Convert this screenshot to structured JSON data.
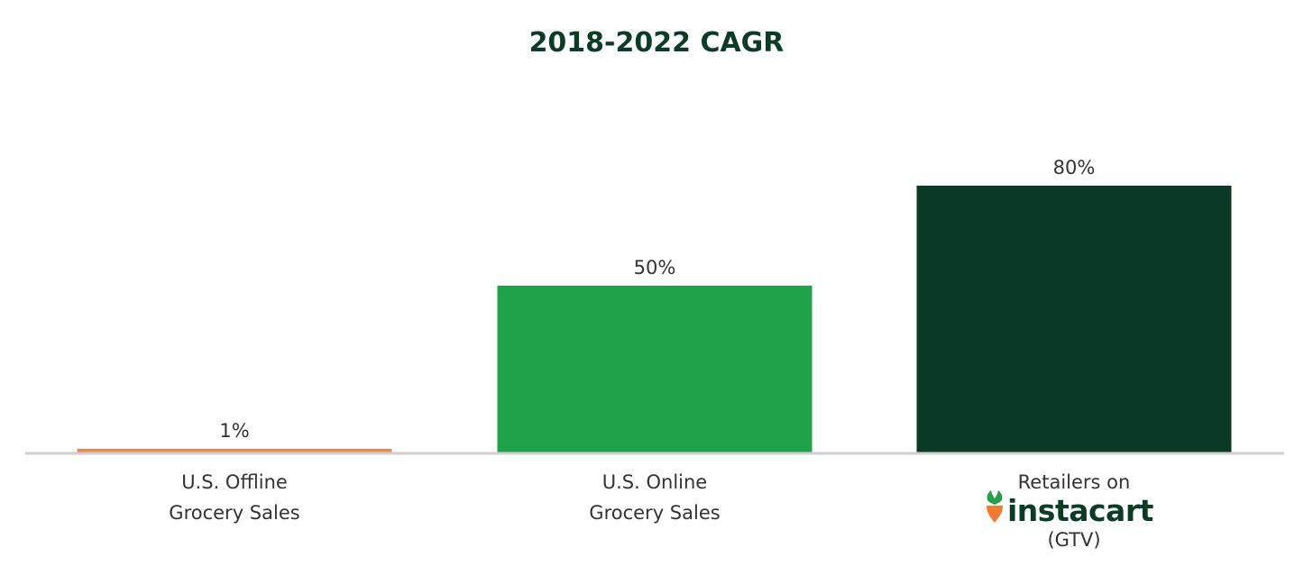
{
  "chart_data": {
    "type": "bar",
    "title": "2018-2022 CAGR",
    "categories": [
      {
        "lines": [
          "U.S. Offline",
          "Grocery Sales"
        ],
        "brand": "",
        "suffix": ""
      },
      {
        "lines": [
          "U.S. Online",
          "Grocery Sales"
        ],
        "brand": "",
        "suffix": ""
      },
      {
        "lines": [
          "Retailers on"
        ],
        "brand": "instacart",
        "suffix": "(GTV)"
      }
    ],
    "values": [
      1,
      50,
      80
    ],
    "value_labels": [
      "1%",
      "50%",
      "80%"
    ],
    "colors": [
      "#e8894f",
      "#1fa24a",
      "#0a3a26"
    ],
    "ylim": [
      0,
      80
    ],
    "grid": false,
    "xlabel": "",
    "ylabel": ""
  },
  "brand": {
    "logo_icon": "carrot-icon",
    "logo_colors": {
      "carrot": "#f27b32",
      "leaf": "#1fa24a",
      "text": "#0b3d26"
    }
  }
}
